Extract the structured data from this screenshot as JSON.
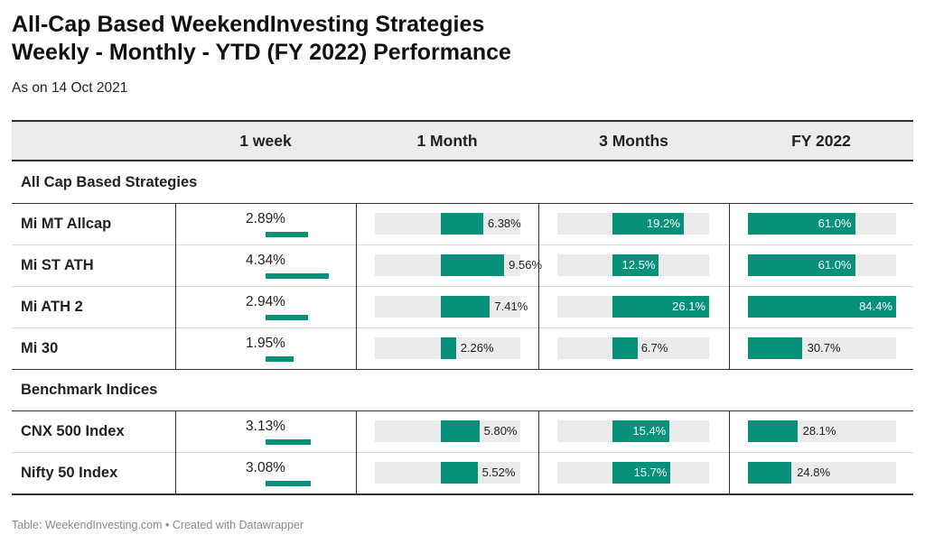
{
  "title_line1": "All-Cap Based WeekendInvesting Strategies",
  "title_line2": "Weekly - Monthly - YTD (FY 2022)  Performance",
  "subtitle": "As on 14 Oct 2021",
  "footer": "Table: WeekendInvesting.com • Created with Datawrapper",
  "colors": {
    "bar": "#08917a",
    "bar_bg": "#ebebeb",
    "header_bg": "#ececec"
  },
  "columns": [
    "",
    "1 week",
    "1 Month",
    "3 Months",
    "FY 2022"
  ],
  "chart_data": {
    "type": "table",
    "groups": [
      {
        "label": "All Cap Based Strategies",
        "rows": [
          {
            "name": "Mi MT Allcap",
            "week": 2.89,
            "month": 6.38,
            "three_months": 19.2,
            "fy2022": 61.0,
            "week_label": "2.89%",
            "month_label": "6.38%",
            "three_months_label": "19.2%",
            "fy2022_label": "61.0%"
          },
          {
            "name": "Mi ST ATH",
            "week": 4.34,
            "month": 9.56,
            "three_months": 12.5,
            "fy2022": 61.0,
            "week_label": "4.34%",
            "month_label": "9.56%",
            "three_months_label": "12.5%",
            "fy2022_label": "61.0%"
          },
          {
            "name": "Mi ATH 2",
            "week": 2.94,
            "month": 7.41,
            "three_months": 26.1,
            "fy2022": 84.4,
            "week_label": "2.94%",
            "month_label": "7.41%",
            "three_months_label": "26.1%",
            "fy2022_label": "84.4%"
          },
          {
            "name": "Mi 30",
            "week": 1.95,
            "month": 2.26,
            "three_months": 6.7,
            "fy2022": 30.7,
            "week_label": "1.95%",
            "month_label": "2.26%",
            "three_months_label": "6.7%",
            "fy2022_label": "30.7%"
          }
        ]
      },
      {
        "label": "Benchmark Indices",
        "rows": [
          {
            "name": "CNX 500 Index",
            "week": 3.13,
            "month": 5.8,
            "three_months": 15.4,
            "fy2022": 28.1,
            "week_label": "3.13%",
            "month_label": "5.80%",
            "three_months_label": "15.4%",
            "fy2022_label": "28.1%"
          },
          {
            "name": "Nifty 50 Index",
            "week": 3.08,
            "month": 5.52,
            "three_months": 15.7,
            "fy2022": 24.8,
            "week_label": "3.08%",
            "month_label": "5.52%",
            "three_months_label": "15.7%",
            "fy2022_label": "24.8%"
          }
        ]
      }
    ],
    "scales": {
      "month_min": -10,
      "month_max": 12,
      "three_months_min": -15,
      "three_months_max": 26.1,
      "fy2022_max": 84.4,
      "week_max": 4.34
    }
  }
}
